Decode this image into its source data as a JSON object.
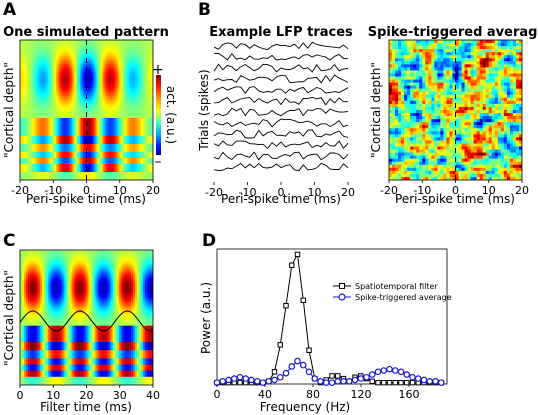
{
  "panels": {
    "A": {
      "letter": "A",
      "title": "One simulated pattern",
      "ylabel": "\"Cortical depth\"",
      "xlabel": "Peri-spike time (ms)",
      "colorbar_label": "act. (a.u.)",
      "colorbar_plus": "+",
      "colorbar_minus": "–"
    },
    "B": {
      "letter": "B",
      "left_title": "Example LFP traces",
      "left_ylabel": "Trials (spikes)",
      "left_xlabel": "Peri-spike time (ms)",
      "right_title": "Spike-triggered average",
      "right_ylabel": "\"Cortical depth\"",
      "right_xlabel": "Peri-spike time (ms)"
    },
    "C": {
      "letter": "C",
      "ylabel": "\"Cortical depth\"",
      "xlabel": "Filter time (ms)"
    },
    "D": {
      "letter": "D",
      "ylabel": "Power (a.u.)",
      "xlabel": "Frequency (Hz)"
    }
  },
  "colors": {
    "spatiotemporal_filter": "#000000",
    "spike_triggered_average": "#1a1acc"
  },
  "chart_data": [
    {
      "id": "A",
      "type": "heatmap",
      "title": "One simulated pattern",
      "xlabel": "Peri-spike time (ms)",
      "ylabel": "\"Cortical depth\"",
      "xlim": [
        -20,
        20
      ],
      "xticks": [
        "-20",
        "-10",
        "0",
        "10",
        "20"
      ],
      "dashed_line_x": 0,
      "colorscale": "jet",
      "colorbar": "act. (a.u.)"
    },
    {
      "id": "B-traces",
      "type": "line",
      "title": "Example LFP traces",
      "xlabel": "Peri-spike time (ms)",
      "ylabel": "Trials (spikes)",
      "xlim": [
        -20,
        20
      ],
      "xticks": [
        "-20",
        "-10",
        "0",
        "10",
        "20"
      ],
      "n_traces": 12
    },
    {
      "id": "B-sta",
      "type": "heatmap",
      "title": "Spike-triggered average",
      "xlabel": "Peri-spike time (ms)",
      "ylabel": "\"Cortical depth\"",
      "xlim": [
        -20,
        20
      ],
      "xticks": [
        "-20",
        "-10",
        "0",
        "10",
        "20"
      ],
      "dashed_line_x": 0,
      "colorscale": "jet"
    },
    {
      "id": "C",
      "type": "heatmap",
      "xlabel": "Filter time (ms)",
      "ylabel": "\"Cortical depth\"",
      "xlim": [
        0,
        40
      ],
      "xticks": [
        "0",
        "10",
        "20",
        "30",
        "40"
      ],
      "overlay": "sinusoid"
    },
    {
      "id": "D",
      "type": "line",
      "xlabel": "Frequency (Hz)",
      "ylabel": "Power (a.u.)",
      "xlim": [
        0,
        200
      ],
      "ylim": [
        0,
        1.0
      ],
      "xticks": [
        "0",
        "40",
        "80",
        "120",
        "160"
      ],
      "legend_loc": "upper-right",
      "series": [
        {
          "name": "Spatiotemporal filter",
          "marker": "square",
          "x": [
            0,
            5,
            10,
            15,
            20,
            25,
            30,
            35,
            40,
            45,
            50,
            55,
            60,
            65,
            70,
            75,
            80,
            85,
            90,
            95,
            100,
            105,
            110,
            115,
            120,
            125,
            130,
            135,
            140,
            145,
            150,
            155,
            160,
            165,
            170,
            175,
            180,
            185,
            190,
            195
          ],
          "y": [
            0.01,
            0.01,
            0.01,
            0.01,
            0.01,
            0.01,
            0.01,
            0.01,
            0.01,
            0.02,
            0.09,
            0.29,
            0.58,
            0.88,
            0.96,
            0.62,
            0.25,
            0.04,
            0.01,
            0.03,
            0.06,
            0.06,
            0.04,
            0.02,
            0.05,
            0.06,
            0.04,
            0.02,
            0.01,
            0.01,
            0.01,
            0.01,
            0.01,
            0.01,
            0.01,
            0.01,
            0.01,
            0.01,
            0.01,
            0.01
          ]
        },
        {
          "name": "Spike-triggered average",
          "marker": "circle",
          "x": [
            0,
            5,
            10,
            15,
            20,
            25,
            30,
            35,
            40,
            45,
            50,
            55,
            60,
            65,
            70,
            75,
            80,
            85,
            90,
            95,
            100,
            105,
            110,
            115,
            120,
            125,
            130,
            135,
            140,
            145,
            150,
            155,
            160,
            165,
            170,
            175,
            180,
            185,
            190,
            195
          ],
          "y": [
            0.01,
            0.02,
            0.03,
            0.04,
            0.05,
            0.04,
            0.03,
            0.02,
            0.01,
            0.02,
            0.03,
            0.05,
            0.08,
            0.13,
            0.17,
            0.14,
            0.09,
            0.04,
            0.02,
            0.01,
            0.01,
            0.02,
            0.02,
            0.02,
            0.03,
            0.04,
            0.05,
            0.07,
            0.09,
            0.1,
            0.11,
            0.1,
            0.09,
            0.07,
            0.05,
            0.04,
            0.03,
            0.02,
            0.02,
            0.01
          ]
        }
      ]
    }
  ]
}
